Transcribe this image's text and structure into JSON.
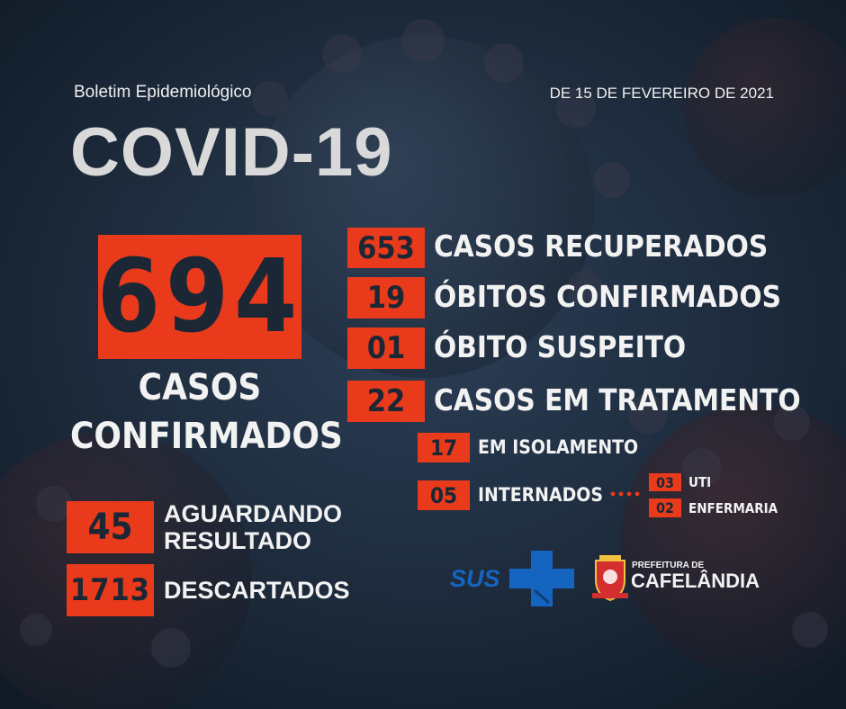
{
  "header": {
    "subtitle": "Boletim Epidemiológico",
    "date": "DE 15 DE FEVEREIRO DE 2021",
    "title": "COVID-19"
  },
  "confirmed": {
    "value": "694",
    "label_line1": "CASOS",
    "label_line2": "CONFIRMADOS"
  },
  "stats": [
    {
      "value": "653",
      "label": "CASOS RECUPERADOS"
    },
    {
      "value": "19",
      "label": "ÓBITOS CONFIRMADOS"
    },
    {
      "value": "01",
      "label": "ÓBITO SUSPEITO"
    },
    {
      "value": "22",
      "label": "CASOS EM TRATAMENTO"
    }
  ],
  "treatment": {
    "isolation": {
      "value": "17",
      "label": "EM ISOLAMENTO"
    },
    "hospitalized": {
      "value": "05",
      "label": "INTERNADOS"
    },
    "uti": {
      "value": "03",
      "label": "UTI"
    },
    "ward": {
      "value": "02",
      "label": "ENFERMARIA"
    }
  },
  "awaiting": {
    "value": "45",
    "label_line1": "AGUARDANDO",
    "label_line2": "RESULTADO"
  },
  "discarded": {
    "value": "1713",
    "label": "DESCARTADOS"
  },
  "logos": {
    "sus": "SUS",
    "prefeitura_small": "PREFEITURA DE",
    "prefeitura_big": "CAFELÂNDIA"
  },
  "colors": {
    "accent": "#e93a1c",
    "background": "#1d2c3e",
    "text": "#f2f2f2",
    "box_text": "#1b2735",
    "sus_blue": "#1565c0"
  }
}
